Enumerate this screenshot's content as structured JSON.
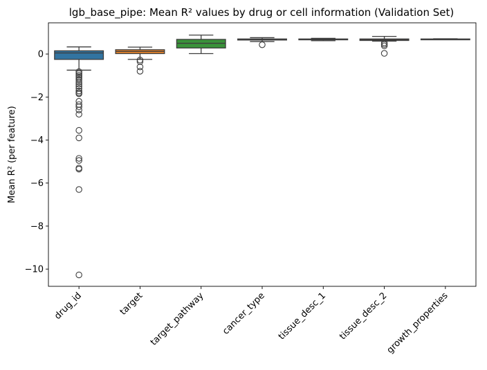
{
  "chart_data": {
    "type": "box",
    "title": "lgb_base_pipe: Mean R² values by drug or cell information (Validation Set)",
    "xlabel": "",
    "ylabel": "Mean R² (per feature)",
    "ylim": [
      -10.8,
      1.45
    ],
    "yticks": [
      0,
      -2,
      -4,
      -6,
      -8,
      -10
    ],
    "ytick_labels": [
      "0",
      "−2",
      "−4",
      "−6",
      "−8",
      "−10"
    ],
    "grid": false,
    "categories": [
      "drug_id",
      "target",
      "target_pathway",
      "cancer_type",
      "tissue_desc_1",
      "tissue_desc_2",
      "growth_properties"
    ],
    "series": [
      {
        "category": "drug_id",
        "color": "#3274a1",
        "whisker_low": -0.75,
        "q1": -0.25,
        "median": 0.05,
        "q3": 0.15,
        "whisker_high": 0.33,
        "outliers": [
          -0.82,
          -0.9,
          -0.98,
          -1.05,
          -1.12,
          -1.2,
          -1.3,
          -1.4,
          -1.5,
          -1.6,
          -1.72,
          -1.8,
          -1.85,
          -2.2,
          -2.35,
          -2.45,
          -2.6,
          -2.8,
          -3.55,
          -3.9,
          -4.85,
          -4.95,
          -5.3,
          -5.35,
          -6.3,
          -10.27
        ]
      },
      {
        "category": "target",
        "color": "#e1812c",
        "whisker_low": -0.25,
        "q1": 0.02,
        "median": 0.12,
        "q3": 0.2,
        "whisker_high": 0.32,
        "outliers": [
          -0.28,
          -0.35,
          -0.6,
          -0.8
        ]
      },
      {
        "category": "target_pathway",
        "color": "#3a923a",
        "whisker_low": 0.02,
        "q1": 0.28,
        "median": 0.5,
        "q3": 0.68,
        "whisker_high": 0.88,
        "outliers": []
      },
      {
        "category": "cancer_type",
        "color": "#c03d3e",
        "whisker_low": 0.58,
        "q1": 0.65,
        "median": 0.68,
        "q3": 0.7,
        "whisker_high": 0.76,
        "outliers": [
          0.43
        ]
      },
      {
        "category": "tissue_desc_1",
        "color": "#9372b2",
        "whisker_low": 0.62,
        "q1": 0.66,
        "median": 0.68,
        "q3": 0.7,
        "whisker_high": 0.73,
        "outliers": []
      },
      {
        "category": "tissue_desc_2",
        "color": "#845b53",
        "whisker_low": 0.6,
        "q1": 0.63,
        "median": 0.67,
        "q3": 0.7,
        "whisker_high": 0.82,
        "outliers": [
          0.52,
          0.45,
          0.38,
          0.03
        ]
      },
      {
        "category": "growth_properties",
        "color": "#d684bd",
        "whisker_low": 0.67,
        "q1": 0.68,
        "median": 0.69,
        "q3": 0.7,
        "whisker_high": 0.71,
        "outliers": []
      }
    ]
  }
}
